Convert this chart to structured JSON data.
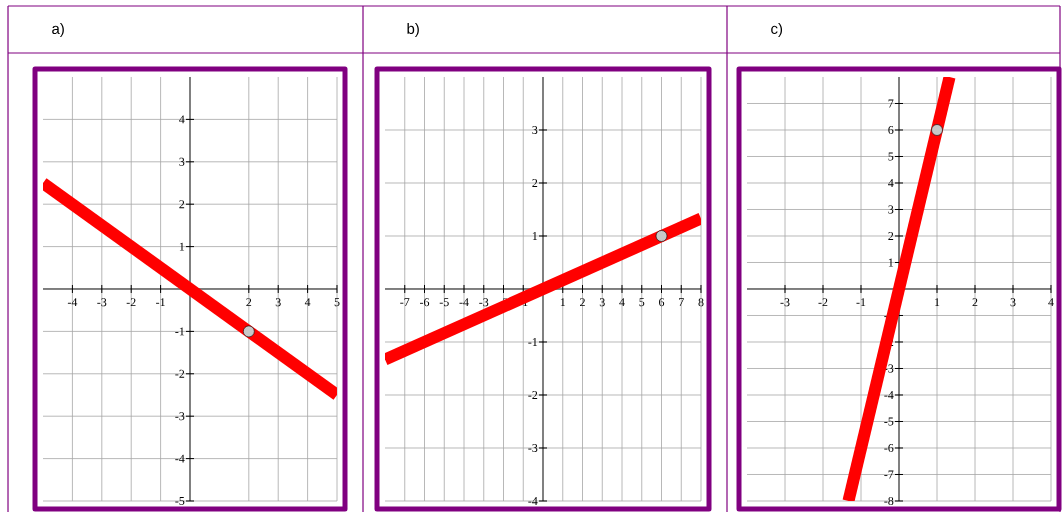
{
  "chart_data": [
    {
      "type": "line",
      "title": "a)",
      "xlim": [
        -5,
        5
      ],
      "ylim": [
        -5,
        5
      ],
      "xticks": [
        -4,
        -3,
        -2,
        -1,
        2,
        3,
        4,
        5
      ],
      "yticks": [
        -5,
        -4,
        -3,
        -2,
        -1,
        1,
        2,
        3,
        4
      ],
      "grid": true,
      "series": [
        {
          "type": "line",
          "color": "#ff0000",
          "x": [
            -5,
            5
          ],
          "values": [
            2.5,
            -2.5
          ],
          "marker": "none"
        },
        {
          "type": "scatter",
          "color": "#c8c8c8",
          "x": [
            2
          ],
          "values": [
            -1
          ],
          "marker": "circle"
        }
      ]
    },
    {
      "type": "line",
      "title": "b)",
      "xlim": [
        -8,
        8
      ],
      "ylim": [
        -4,
        4
      ],
      "xticks": [
        -7,
        -6,
        -5,
        -4,
        -3,
        -2,
        -1,
        1,
        2,
        3,
        4,
        5,
        6,
        7,
        8
      ],
      "yticks": [
        -4,
        -3,
        -2,
        -1,
        1,
        2,
        3
      ],
      "grid": true,
      "series": [
        {
          "type": "line",
          "color": "#ff0000",
          "x": [
            -8,
            8
          ],
          "values": [
            -1.33,
            1.33
          ],
          "marker": "none"
        },
        {
          "type": "scatter",
          "color": "#c8c8c8",
          "x": [
            6
          ],
          "values": [
            1
          ],
          "marker": "circle"
        }
      ]
    },
    {
      "type": "line",
      "title": "c)",
      "xlim": [
        -4,
        4
      ],
      "ylim": [
        -8,
        8
      ],
      "xticks": [
        -3,
        -2,
        -1,
        1,
        2,
        3,
        4
      ],
      "yticks": [
        -8,
        -7,
        -6,
        -5,
        -4,
        -3,
        -2,
        -1,
        1,
        2,
        3,
        4,
        5,
        6,
        7
      ],
      "grid": true,
      "series": [
        {
          "type": "line",
          "color": "#ff0000",
          "x": [
            -1.33,
            1.33
          ],
          "values": [
            -8,
            8
          ],
          "marker": "none"
        },
        {
          "type": "scatter",
          "color": "#c8c8c8",
          "x": [
            1
          ],
          "values": [
            6
          ],
          "marker": "circle"
        }
      ]
    }
  ]
}
